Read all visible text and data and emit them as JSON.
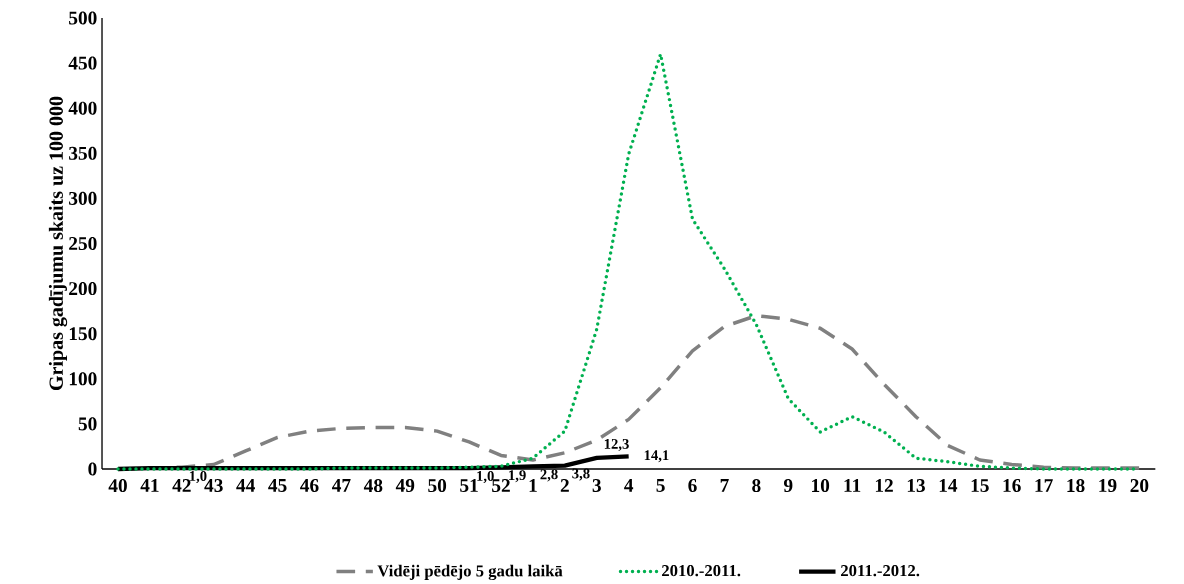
{
  "chart_data": {
    "type": "line",
    "ylabel": "Gripas gadījumu skaits uz 100 000",
    "categories": [
      "40",
      "41",
      "42",
      "43",
      "44",
      "45",
      "46",
      "47",
      "48",
      "49",
      "50",
      "51",
      "52",
      "1",
      "2",
      "3",
      "4",
      "5",
      "6",
      "7",
      "8",
      "9",
      "10",
      "11",
      "12",
      "13",
      "14",
      "15",
      "16",
      "17",
      "18",
      "19",
      "20"
    ],
    "series": [
      {
        "name": "Vidēji  pēdējo 5 gadu laikā",
        "color": "#808080",
        "line_style": "dashed",
        "values": [
          0,
          1,
          2,
          5,
          20,
          35,
          42,
          45,
          46,
          46,
          42,
          30,
          15,
          10,
          18,
          32,
          55,
          90,
          131,
          158,
          170,
          166,
          156,
          133,
          94,
          58,
          26,
          10,
          5,
          2,
          1,
          1,
          1
        ]
      },
      {
        "name": "2010.-2011.",
        "color": "#00b050",
        "line_style": "dotted",
        "values": [
          0,
          0,
          0,
          0,
          0,
          0,
          0,
          1,
          1,
          1,
          1,
          2,
          3,
          12,
          42,
          155,
          349,
          460,
          277,
          222,
          160,
          78,
          41,
          58,
          41,
          12,
          8,
          3,
          1,
          0,
          0,
          0,
          0
        ]
      },
      {
        "name": "2011.-2012.",
        "color": "#000000",
        "line_style": "solid",
        "values": [
          0,
          1,
          1.0,
          1,
          1,
          1,
          1,
          1,
          1,
          1,
          1,
          1.0,
          1.9,
          2.8,
          3.8,
          12.3,
          14.1,
          null,
          null,
          null,
          null,
          null,
          null,
          null,
          null,
          null,
          null,
          null,
          null,
          null,
          null,
          null,
          null
        ],
        "value_labels": [
          null,
          null,
          "1,0",
          null,
          null,
          null,
          null,
          null,
          null,
          null,
          null,
          "1,0",
          "1,9",
          "2,8",
          "3,8",
          "12,3",
          "14,1",
          null,
          null,
          null,
          null,
          null,
          null,
          null,
          null,
          null,
          null,
          null,
          null,
          null,
          null,
          null,
          null
        ]
      }
    ],
    "ylim": [
      0,
      500
    ],
    "yticks": [
      0,
      50,
      100,
      150,
      200,
      250,
      300,
      350,
      400,
      450,
      500
    ],
    "grid": false,
    "legend": "bottom",
    "marker": "none"
  }
}
